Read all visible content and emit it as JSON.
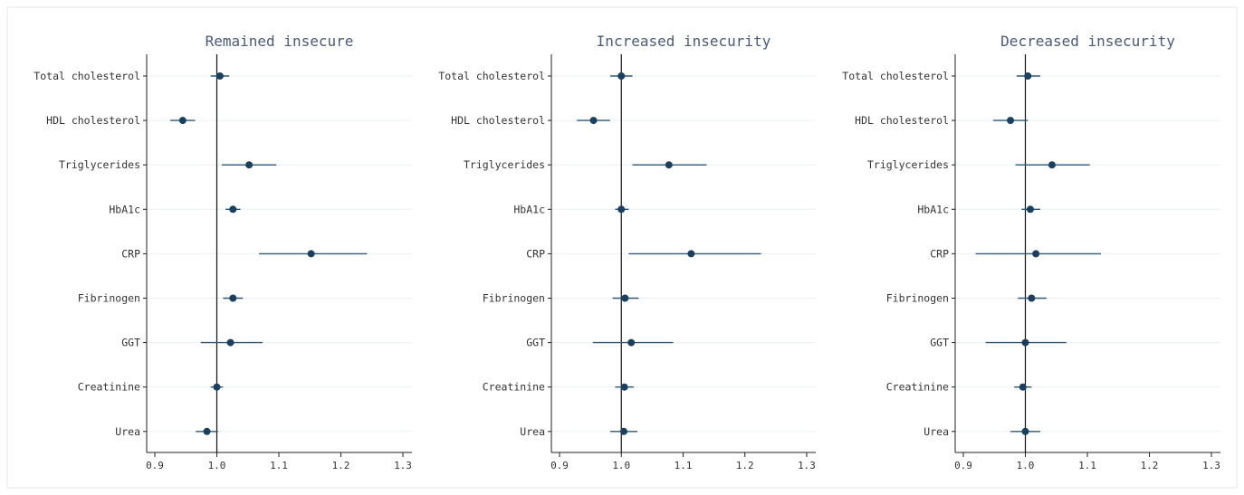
{
  "colors": {
    "marker": "#1b3f5e",
    "ci": "#2e5878",
    "grid": "#eaf0f3",
    "title": "#4a5a78"
  },
  "chart_data": [
    {
      "type": "scatter",
      "title": "Remained insecure",
      "xlabel": "",
      "ylabel": "",
      "xlim": [
        0.9,
        1.3
      ],
      "xticks": [
        "0.9",
        "1.0",
        "1.1",
        "1.2",
        "1.3"
      ],
      "reference_line": 1.0,
      "categories": [
        "Total cholesterol",
        "HDL cholesterol",
        "Triglycerides",
        "HbA1c",
        "CRP",
        "Fibrinogen",
        "GGT",
        "Creatinine",
        "Urea"
      ],
      "estimates": [
        1.005,
        0.945,
        1.052,
        1.026,
        1.152,
        1.026,
        1.022,
        1.0,
        0.984
      ],
      "ci_low": [
        0.99,
        0.925,
        1.008,
        1.014,
        1.068,
        1.01,
        0.974,
        0.99,
        0.966
      ],
      "ci_high": [
        1.02,
        0.965,
        1.096,
        1.038,
        1.242,
        1.042,
        1.074,
        1.01,
        1.002
      ],
      "grid": true
    },
    {
      "type": "scatter",
      "title": "Increased insecurity",
      "xlabel": "",
      "ylabel": "",
      "xlim": [
        0.9,
        1.3
      ],
      "xticks": [
        "0.9",
        "1.0",
        "1.1",
        "1.2",
        "1.3"
      ],
      "reference_line": 1.0,
      "categories": [
        "Total cholesterol",
        "HDL cholesterol",
        "Triglycerides",
        "HbA1c",
        "CRP",
        "Fibrinogen",
        "GGT",
        "Creatinine",
        "Urea"
      ],
      "estimates": [
        1.0,
        0.955,
        1.077,
        1.0,
        1.113,
        1.006,
        1.016,
        1.005,
        1.004
      ],
      "ci_low": [
        0.982,
        0.928,
        1.018,
        0.99,
        1.012,
        0.986,
        0.954,
        0.99,
        0.982
      ],
      "ci_high": [
        1.018,
        0.982,
        1.138,
        1.012,
        1.226,
        1.028,
        1.084,
        1.02,
        1.026
      ],
      "grid": true
    },
    {
      "type": "scatter",
      "title": "Decreased insecurity",
      "xlabel": "",
      "ylabel": "",
      "xlim": [
        0.9,
        1.3
      ],
      "xticks": [
        "0.9",
        "1.0",
        "1.1",
        "1.2",
        "1.3"
      ],
      "reference_line": 1.0,
      "categories": [
        "Total cholesterol",
        "HDL cholesterol",
        "Triglycerides",
        "HbA1c",
        "CRP",
        "Fibrinogen",
        "GGT",
        "Creatinine",
        "Urea"
      ],
      "estimates": [
        1.004,
        0.976,
        1.043,
        1.008,
        1.017,
        1.01,
        1.0,
        0.996,
        1.0
      ],
      "ci_low": [
        0.986,
        0.948,
        0.984,
        0.994,
        0.92,
        0.988,
        0.936,
        0.982,
        0.976
      ],
      "ci_high": [
        1.024,
        1.004,
        1.104,
        1.024,
        1.122,
        1.034,
        1.066,
        1.01,
        1.024
      ],
      "grid": true
    }
  ]
}
